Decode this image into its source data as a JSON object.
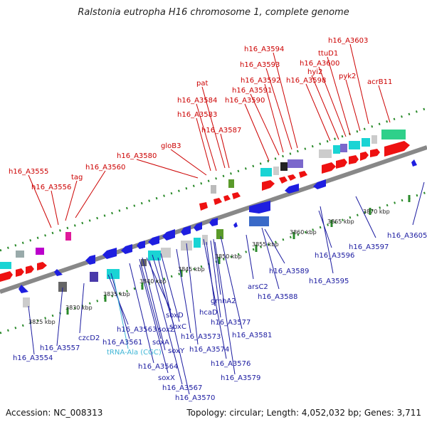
{
  "title": "Ralstonia eutropha H16 chromosome 1, complete genome",
  "footer": {
    "accession": "Accession: NC_008313",
    "stats": "Topology: circular; Length: 4,052,032 bp; Genes: 3,711"
  },
  "kbp_labels": [
    "3825 kbp",
    "3830 kbp",
    "3835 kbp",
    "3840 kbp",
    "3845 kbp",
    "3850 kbp",
    "3855 kbp",
    "3860 kbp",
    "3865 kbp",
    "3870 kbp"
  ],
  "top_labels": [
    "h16_A3603",
    "h16_A3594",
    "ttuD1",
    "h16_A3593",
    "h16_A3600",
    "hyi2",
    "h16_A3592",
    "h16_A3598",
    "pyk2",
    "h16_A3591",
    "acrB11",
    "h16_A3590",
    "pat",
    "h16_A3584",
    "h16_A3583",
    "h16_A3587",
    "gloB3",
    "h16_A3580",
    "h16_A3555",
    "h16_A3560",
    "tag",
    "h16_A3556"
  ],
  "bottom_labels": [
    "h16_A3605",
    "h16_A3597",
    "h16_A3596",
    "h16_A3589",
    "h16_A3595",
    "arsC2",
    "h16_A3588",
    "gmhA2",
    "hcaD",
    "h16_A3577",
    "soxD",
    "h16_A3581",
    "soxC",
    "h16_A3573",
    "soxZ",
    "h16_A3574",
    "h16_A3563",
    "h16_A3561",
    "soxA",
    "soxY",
    "h16_A3576",
    "tRNA-Ala (CGC)",
    "h16_A3564",
    "h16_A3579",
    "soxX",
    "h16_A3567",
    "h16_A3570",
    "czcD2",
    "h16_A3557",
    "h16_A3554"
  ]
}
